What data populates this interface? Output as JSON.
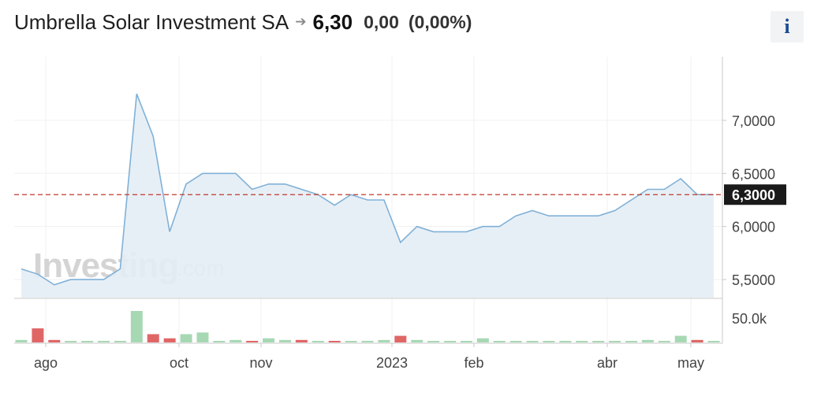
{
  "header": {
    "instrument_name": "Umbrella Solar Investment SA",
    "arrow_icon": "right-arrow-icon",
    "last_price": "6,30",
    "change": "0,00",
    "change_percent": "(0,00%)",
    "info_label": "i"
  },
  "watermark": {
    "brand": "Investing",
    "suffix": ".com"
  },
  "colors": {
    "line": "#7fb1d8",
    "area": "#e4edf5",
    "current_line": "#c0392b",
    "current_label_bg": "#1a1a1a",
    "volume_up": "#a7d8b4",
    "volume_down": "#e06666"
  },
  "chart_data": {
    "type": "area",
    "title": "",
    "xlabel": "",
    "ylabel": "",
    "y_ticks": [
      "7,0000",
      "6,5000",
      "6,0000",
      "5,5000"
    ],
    "y_tick_values": [
      7.0,
      6.5,
      6.0,
      5.5
    ],
    "ylim": [
      5.33,
      7.6
    ],
    "x_tick_labels": [
      "ago",
      "oct",
      "nov",
      "2023",
      "feb",
      "abr",
      "may"
    ],
    "current_value": 6.3,
    "current_value_label": "6,3000",
    "grid": true,
    "series": [
      {
        "values": [
          5.6,
          5.55,
          5.45,
          5.5,
          5.5,
          5.5,
          5.6,
          7.25,
          6.85,
          5.95,
          6.4,
          6.5,
          6.5,
          6.5,
          6.35,
          6.4,
          6.4,
          6.35,
          6.3,
          6.2,
          6.3,
          6.25,
          6.25,
          5.85,
          6.0,
          5.95,
          5.95,
          5.95,
          6.0,
          6.0,
          6.1,
          6.15,
          6.1,
          6.1,
          6.1,
          6.1,
          6.15,
          6.25,
          6.35,
          6.35,
          6.45,
          6.3,
          6.3
        ]
      }
    ],
    "volume": {
      "label": "50,0k",
      "axis_label": "50.0k",
      "bars": [
        {
          "v": 3,
          "dir": "up"
        },
        {
          "v": 17,
          "dir": "down"
        },
        {
          "v": 3,
          "dir": "down"
        },
        {
          "v": 1,
          "dir": "up"
        },
        {
          "v": 1,
          "dir": "up"
        },
        {
          "v": 0,
          "dir": "up"
        },
        {
          "v": 1,
          "dir": "up"
        },
        {
          "v": 38,
          "dir": "up"
        },
        {
          "v": 10,
          "dir": "down"
        },
        {
          "v": 5,
          "dir": "down"
        },
        {
          "v": 10,
          "dir": "up"
        },
        {
          "v": 12,
          "dir": "up"
        },
        {
          "v": 1,
          "dir": "up"
        },
        {
          "v": 3,
          "dir": "up"
        },
        {
          "v": 1,
          "dir": "down"
        },
        {
          "v": 5,
          "dir": "up"
        },
        {
          "v": 3,
          "dir": "up"
        },
        {
          "v": 3,
          "dir": "down"
        },
        {
          "v": 0,
          "dir": "up"
        },
        {
          "v": 1,
          "dir": "down"
        },
        {
          "v": 1,
          "dir": "up"
        },
        {
          "v": 0,
          "dir": "up"
        },
        {
          "v": 3,
          "dir": "up"
        },
        {
          "v": 8,
          "dir": "down"
        },
        {
          "v": 3,
          "dir": "up"
        },
        {
          "v": 0,
          "dir": "up"
        },
        {
          "v": 1,
          "dir": "up"
        },
        {
          "v": 1,
          "dir": "up"
        },
        {
          "v": 5,
          "dir": "up"
        },
        {
          "v": 1,
          "dir": "up"
        },
        {
          "v": 1,
          "dir": "up"
        },
        {
          "v": 0,
          "dir": "up"
        },
        {
          "v": 0,
          "dir": "up"
        },
        {
          "v": 0,
          "dir": "up"
        },
        {
          "v": 1,
          "dir": "up"
        },
        {
          "v": 1,
          "dir": "up"
        },
        {
          "v": 0,
          "dir": "up"
        },
        {
          "v": 1,
          "dir": "up"
        },
        {
          "v": 3,
          "dir": "up"
        },
        {
          "v": 0,
          "dir": "up"
        },
        {
          "v": 8,
          "dir": "up"
        },
        {
          "v": 3,
          "dir": "down"
        },
        {
          "v": 0,
          "dir": "up"
        }
      ]
    }
  }
}
